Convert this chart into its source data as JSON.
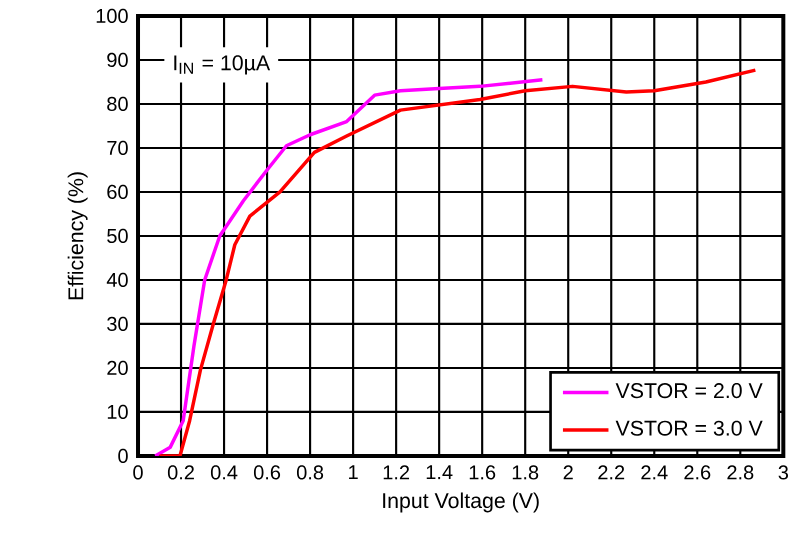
{
  "chart_data": {
    "type": "line",
    "xlabel": "Input Voltage (V)",
    "ylabel": "Efficiency (%)",
    "annotations": [
      "I$_{IN}$ = 10µA"
    ],
    "xlim": [
      0,
      3
    ],
    "ylim": [
      0,
      100
    ],
    "xticks": [
      0,
      0.2,
      0.4,
      0.6,
      0.8,
      1,
      1.2,
      1.4,
      1.6,
      1.8,
      2,
      2.2,
      2.4,
      2.6,
      2.8,
      3
    ],
    "yticks": [
      0,
      10,
      20,
      30,
      40,
      50,
      60,
      70,
      80,
      90,
      100
    ],
    "grid": true,
    "legend": "bottom right",
    "marker": "none",
    "line_style": "solid",
    "series": [
      {
        "name": "VSTOR = 2.0 V",
        "color": "#ff00ff",
        "x": [
          0.08,
          0.15,
          0.21,
          0.26,
          0.31,
          0.38,
          0.49,
          0.6,
          0.69,
          0.8,
          0.97,
          1.1,
          1.22,
          1.4,
          1.59,
          1.88
        ],
        "values": [
          0,
          2,
          8,
          25,
          40,
          50,
          58,
          65,
          70.5,
          73,
          76,
          82,
          83,
          83.5,
          84,
          85.5
        ]
      },
      {
        "name": "VSTOR = 3.0 V",
        "color": "#ff0000",
        "x": [
          0.1,
          0.195,
          0.24,
          0.29,
          0.35,
          0.41,
          0.45,
          0.52,
          0.66,
          0.82,
          0.97,
          1.22,
          1.59,
          1.8,
          2.02,
          2.27,
          2.4,
          2.64,
          2.87
        ],
        "values": [
          0,
          0,
          8,
          19.5,
          30,
          40,
          48,
          54.5,
          60,
          69,
          72.7,
          78.6,
          81,
          83,
          84,
          82.7,
          83,
          85,
          87.7
        ]
      }
    ]
  }
}
